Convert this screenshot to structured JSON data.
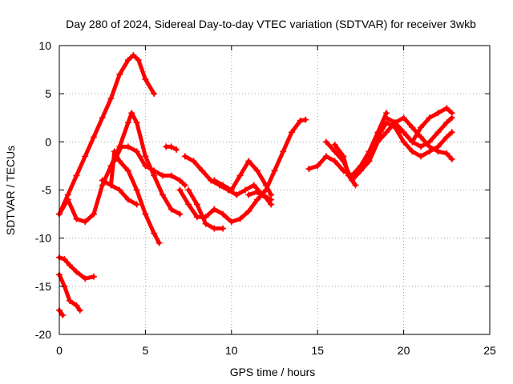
{
  "chart_data": {
    "type": "scatter",
    "title": "Day 280 of 2024, Sidereal Day-to-day VTEC variation (SDTVAR) for receiver 3wkb",
    "xlabel": "GPS time / hours",
    "ylabel": "SDTVAR / TECUs",
    "xlim": [
      0,
      25
    ],
    "ylim": [
      -20,
      10
    ],
    "xticks": [
      "0",
      "5",
      "10",
      "15",
      "20",
      "25"
    ],
    "yticks": [
      "-20",
      "-15",
      "-10",
      "-5",
      "0",
      "5",
      "10"
    ],
    "grid": true,
    "marker": "plus",
    "color": "#ff0000",
    "series": [
      {
        "x": [
          0,
          0.5,
          1.0,
          1.5,
          2.0,
          2.5,
          3.0,
          3.5,
          4.0,
          4.3,
          4.6,
          5.0,
          5.5
        ],
        "y": [
          -7.5,
          -5.5,
          -3.5,
          -1.5,
          0.5,
          2.5,
          4.5,
          7.0,
          8.5,
          9.0,
          8.5,
          6.5,
          5.0
        ]
      },
      {
        "x": [
          0,
          0.5,
          1.0,
          1.5,
          2.0,
          2.5,
          3.0,
          3.5,
          4.0,
          4.2,
          4.5,
          5.0,
          5.5,
          6.0,
          6.5,
          7.0
        ],
        "y": [
          -7.5,
          -6.0,
          -8.0,
          -8.3,
          -7.5,
          -4.5,
          -2.5,
          -0.5,
          2.0,
          3.0,
          2.0,
          -1.5,
          -3.5,
          -5.5,
          -7.0,
          -7.5
        ]
      },
      {
        "x": [
          3.2,
          3.6,
          4.0,
          4.5,
          5.0,
          5.5,
          6.0,
          6.5,
          7.0,
          7.3
        ],
        "y": [
          -2.0,
          -0.5,
          -0.5,
          -1.0,
          -2.5,
          -3.0,
          -3.5,
          -3.5,
          -4.0,
          -4.5
        ]
      },
      {
        "x": [
          3.0,
          3.2,
          3.5,
          4.0,
          4.5,
          5.0,
          5.5,
          5.8
        ],
        "y": [
          -4.5,
          -1.0,
          -2.0,
          -3.0,
          -5.0,
          -7.5,
          -9.5,
          -10.5
        ]
      },
      {
        "x": [
          2.5,
          3.0,
          3.5,
          4.0,
          4.5
        ],
        "y": [
          -4.0,
          -4.5,
          -5.0,
          -6.0,
          -6.5
        ]
      },
      {
        "x": [
          6.2,
          6.5,
          6.8
        ],
        "y": [
          -0.5,
          -0.5,
          -0.8
        ]
      },
      {
        "x": [
          7.3,
          7.8,
          8.3,
          8.8,
          9.3,
          9.8,
          10.3,
          10.8,
          11.3,
          11.8,
          12.3
        ],
        "y": [
          -1.5,
          -2.0,
          -3.0,
          -4.0,
          -4.5,
          -5.0,
          -5.5,
          -5.0,
          -4.5,
          -5.5,
          -6.0
        ]
      },
      {
        "x": [
          7.0,
          7.5,
          8.0,
          8.5,
          9.0,
          9.5,
          10.0,
          10.5,
          11.0,
          11.5,
          12.0,
          12.5,
          13.0,
          13.5,
          14.0,
          14.3
        ],
        "y": [
          -5.0,
          -6.5,
          -7.8,
          -7.8,
          -7.0,
          -7.5,
          -8.3,
          -8.0,
          -7.2,
          -6.0,
          -5.0,
          -3.0,
          -1.0,
          1.0,
          2.2,
          2.3
        ]
      },
      {
        "x": [
          7.5,
          8.0,
          8.5,
          9.0,
          9.5
        ],
        "y": [
          -5.0,
          -6.5,
          -8.5,
          -9.0,
          -9.0
        ]
      },
      {
        "x": [
          9.0,
          9.5,
          10.0,
          10.5,
          11.0,
          11.5,
          12.0,
          12.3
        ],
        "y": [
          -4.0,
          -4.5,
          -5.0,
          -3.5,
          -2.0,
          -3.0,
          -4.5,
          -5.5
        ]
      },
      {
        "x": [
          11.0,
          11.5,
          12.0,
          12.3
        ],
        "y": [
          -5.5,
          -5.2,
          -5.8,
          -6.5
        ]
      },
      {
        "x": [
          14.5,
          15.0,
          15.5,
          16.0,
          16.5,
          17.0,
          17.5,
          18.0,
          18.5,
          19.0,
          19.5,
          20.0,
          20.5,
          21.0,
          21.5,
          22.0,
          22.5,
          22.8
        ],
        "y": [
          -2.8,
          -2.5,
          -1.5,
          -2.0,
          -3.0,
          -3.5,
          -2.5,
          -1.0,
          0.5,
          2.0,
          1.5,
          1.0,
          0.0,
          -0.5,
          0.0,
          1.0,
          2.0,
          2.5
        ]
      },
      {
        "x": [
          15.5,
          16.0,
          16.5,
          17.0,
          17.5,
          18.0,
          18.5,
          19.0
        ],
        "y": [
          0.0,
          -1.0,
          -2.0,
          -4.0,
          -3.0,
          -1.0,
          1.0,
          3.0
        ]
      },
      {
        "x": [
          16.0,
          16.5,
          16.8,
          17.2
        ],
        "y": [
          -0.3,
          -1.5,
          -3.5,
          -4.5
        ]
      },
      {
        "x": [
          17.5,
          18.0,
          18.5,
          19.0,
          19.5,
          20.0,
          20.5,
          21.0,
          21.5,
          22.0,
          22.5,
          22.8
        ],
        "y": [
          -3.0,
          -2.0,
          0.0,
          1.0,
          2.0,
          2.5,
          1.5,
          0.5,
          -0.5,
          -1.0,
          -1.2,
          -1.8
        ]
      },
      {
        "x": [
          19.5,
          20.0,
          20.5,
          21.0,
          21.5,
          22.0,
          22.5,
          22.8
        ],
        "y": [
          1.5,
          0.0,
          -1.0,
          -1.5,
          -1.0,
          -0.5,
          0.5,
          1.0
        ]
      },
      {
        "x": [
          19.0,
          19.5,
          20.0,
          20.5,
          21.0,
          21.5,
          22.0,
          22.5,
          22.8
        ],
        "y": [
          2.5,
          2.0,
          1.0,
          0.0,
          1.5,
          2.5,
          3.0,
          3.5,
          3.0
        ]
      },
      {
        "x": [
          0,
          0.3,
          0.6,
          1.0,
          1.5,
          2.0
        ],
        "y": [
          -12.0,
          -12.2,
          -12.8,
          -13.5,
          -14.2,
          -14.0
        ]
      },
      {
        "x": [
          0,
          0.3,
          0.6,
          1.0,
          1.2
        ],
        "y": [
          -13.8,
          -15.0,
          -16.5,
          -17.0,
          -17.5
        ]
      },
      {
        "x": [
          0,
          0.2
        ],
        "y": [
          -17.5,
          -18.0
        ]
      }
    ]
  }
}
